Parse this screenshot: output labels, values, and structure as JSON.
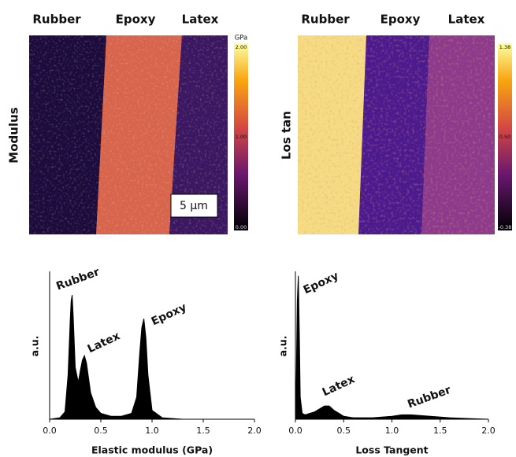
{
  "panels": [
    {
      "labels": [
        "Rubber",
        "Epoxy",
        "Latex"
      ],
      "title": "Modulus",
      "unit": "GPa",
      "colorbar_labels": [
        "2.00",
        "1.00",
        "0.00"
      ],
      "scale_bar": "5 µm"
    },
    {
      "labels": [
        "Rubber",
        "Epoxy",
        "Latex"
      ],
      "title": "Los tan",
      "colorbar_labels": [
        "1.38",
        "0.50",
        "-0.38"
      ]
    }
  ],
  "chart_data": [
    {
      "type": "area",
      "xlabel": "Elastic modulus (GPa)",
      "ylabel": "a.u.",
      "color": "#000000",
      "annotations": [
        "Rubber",
        "Latex",
        "Epoxy"
      ],
      "x": [
        0,
        0.1,
        0.15,
        0.18,
        0.2,
        0.21,
        0.22,
        0.23,
        0.25,
        0.28,
        0.3,
        0.32,
        0.34,
        0.36,
        0.38,
        0.4,
        0.45,
        0.5,
        0.6,
        0.7,
        0.8,
        0.85,
        0.88,
        0.9,
        0.92,
        0.94,
        0.96,
        1.0,
        1.1,
        1.3,
        1.6,
        2.0
      ],
      "values": [
        0,
        0.01,
        0.05,
        0.3,
        0.65,
        0.8,
        0.84,
        0.7,
        0.35,
        0.25,
        0.33,
        0.4,
        0.43,
        0.38,
        0.28,
        0.18,
        0.08,
        0.04,
        0.02,
        0.02,
        0.04,
        0.15,
        0.45,
        0.62,
        0.68,
        0.55,
        0.3,
        0.06,
        0.01,
        0,
        0,
        0
      ],
      "xlim": [
        0,
        2
      ],
      "ylim": [
        0,
        1
      ],
      "xticks": [
        {
          "value": 0,
          "label": "0.0"
        },
        0.5,
        {
          "value": 1,
          "label": "1.0"
        },
        1.5,
        {
          "value": 2,
          "label": "2.0"
        }
      ]
    },
    {
      "type": "area",
      "xlabel": "Loss Tangent",
      "ylabel": "a.u.",
      "color": "#000000",
      "annotations": [
        "Epoxy",
        "Latex",
        "Rubber"
      ],
      "x": [
        0,
        0.01,
        0.02,
        0.03,
        0.04,
        0.05,
        0.07,
        0.1,
        0.2,
        0.3,
        0.35,
        0.4,
        0.5,
        0.6,
        0.8,
        1.0,
        1.1,
        1.2,
        1.4,
        1.6,
        1.8,
        2.0
      ],
      "values": [
        0,
        0.3,
        0.8,
        0.97,
        0.6,
        0.15,
        0.04,
        0.03,
        0.05,
        0.09,
        0.09,
        0.06,
        0.02,
        0.01,
        0.01,
        0.02,
        0.03,
        0.03,
        0.02,
        0.01,
        0.005,
        0
      ],
      "xlim": [
        0,
        2
      ],
      "ylim": [
        0,
        1
      ],
      "xticks": [
        {
          "value": 0,
          "label": "0.0"
        },
        0.5,
        {
          "value": 1,
          "label": "1.0"
        },
        1.5,
        {
          "value": 2,
          "label": "2.0"
        }
      ]
    }
  ]
}
